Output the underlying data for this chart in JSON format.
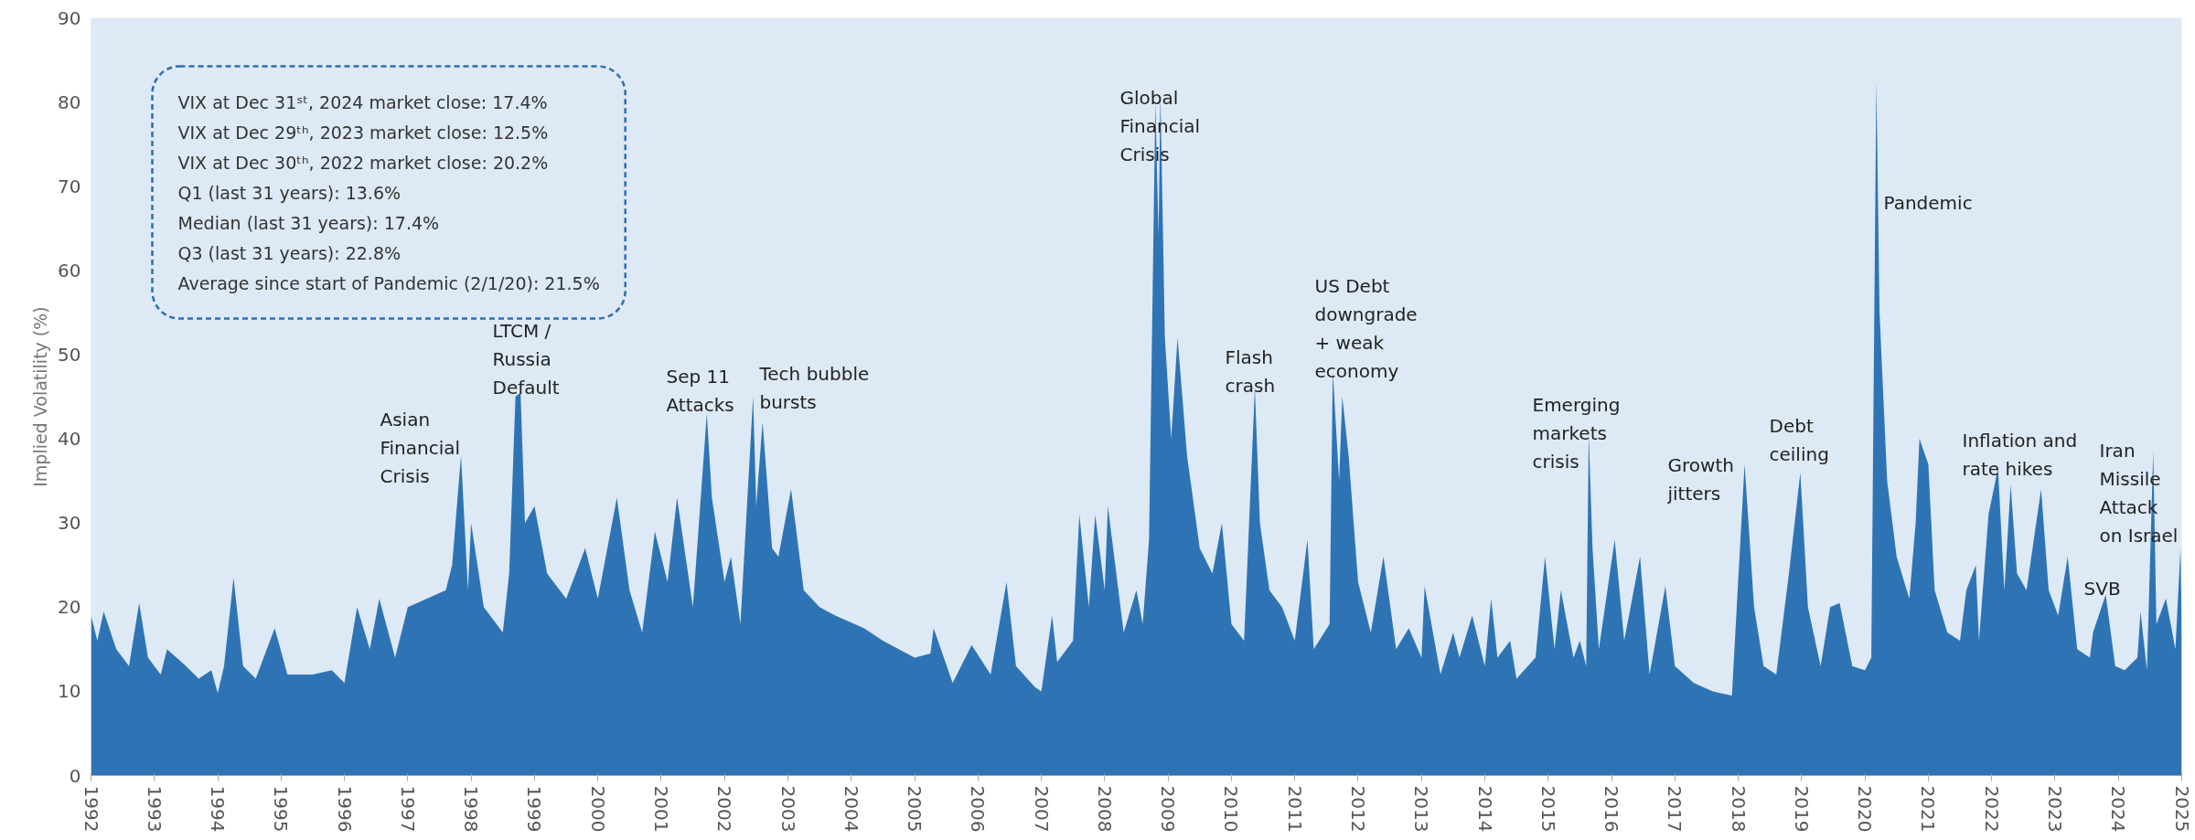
{
  "chart_data": {
    "type": "area",
    "ylabel": "Implied Volatility (%)",
    "xlim": [
      1992,
      2025
    ],
    "xticks": [
      1992,
      1993,
      1994,
      1995,
      1996,
      1997,
      1998,
      1999,
      2000,
      2001,
      2002,
      2003,
      2004,
      2005,
      2006,
      2007,
      2008,
      2009,
      2010,
      2011,
      2012,
      2013,
      2014,
      2015,
      2016,
      2017,
      2018,
      2019,
      2020,
      2021,
      2022,
      2023,
      2024,
      2025
    ],
    "ylim": [
      0,
      90
    ],
    "yticks": [
      0,
      10,
      20,
      30,
      40,
      50,
      60,
      70,
      80,
      90
    ],
    "grid": false,
    "series": [
      {
        "color": "#2e74b5",
        "x": [
          1992.0,
          1992.1,
          1992.2,
          1992.4,
          1992.6,
          1992.76,
          1992.9,
          1993.1,
          1993.2,
          1993.5,
          1993.7,
          1993.9,
          1994.0,
          1994.1,
          1994.25,
          1994.4,
          1994.6,
          1994.9,
          1995.1,
          1995.5,
          1995.8,
          1996.0,
          1996.2,
          1996.4,
          1996.55,
          1996.8,
          1997.0,
          1997.3,
          1997.6,
          1997.7,
          1997.84,
          1997.95,
          1998.0,
          1998.2,
          1998.5,
          1998.6,
          1998.7,
          1998.78,
          1998.85,
          1999.0,
          1999.2,
          1999.5,
          1999.8,
          2000.0,
          2000.3,
          2000.5,
          2000.7,
          2000.9,
          2001.1,
          2001.25,
          2001.5,
          2001.72,
          2001.8,
          2002.0,
          2002.1,
          2002.25,
          2002.45,
          2002.5,
          2002.6,
          2002.75,
          2002.85,
          2003.05,
          2003.25,
          2003.5,
          2003.75,
          2004.2,
          2004.5,
          2005.0,
          2005.25,
          2005.3,
          2005.6,
          2005.9,
          2006.2,
          2006.45,
          2006.6,
          2006.9,
          2007.0,
          2007.17,
          2007.25,
          2007.5,
          2007.6,
          2007.75,
          2007.85,
          2008.0,
          2008.05,
          2008.3,
          2008.5,
          2008.6,
          2008.7,
          2008.8,
          2008.85,
          2008.88,
          2008.95,
          2009.05,
          2009.15,
          2009.3,
          2009.5,
          2009.7,
          2009.85,
          2010.0,
          2010.2,
          2010.37,
          2010.45,
          2010.6,
          2010.8,
          2011.0,
          2011.2,
          2011.3,
          2011.55,
          2011.6,
          2011.7,
          2011.75,
          2011.85,
          2012.0,
          2012.2,
          2012.4,
          2012.6,
          2012.8,
          2013.0,
          2013.05,
          2013.3,
          2013.5,
          2013.6,
          2013.8,
          2014.0,
          2014.1,
          2014.2,
          2014.4,
          2014.5,
          2014.8,
          2014.95,
          2015.1,
          2015.2,
          2015.4,
          2015.5,
          2015.6,
          2015.64,
          2015.7,
          2015.8,
          2016.05,
          2016.2,
          2016.45,
          2016.6,
          2016.85,
          2017.0,
          2017.3,
          2017.6,
          2017.9,
          2018.1,
          2018.25,
          2018.4,
          2018.6,
          2018.8,
          2018.98,
          2019.1,
          2019.3,
          2019.45,
          2019.6,
          2019.8,
          2020.0,
          2020.1,
          2020.18,
          2020.23,
          2020.35,
          2020.5,
          2020.7,
          2020.8,
          2020.86,
          2021.0,
          2021.1,
          2021.3,
          2021.5,
          2021.6,
          2021.75,
          2021.8,
          2021.95,
          2022.1,
          2022.2,
          2022.3,
          2022.4,
          2022.55,
          2022.78,
          2022.9,
          2023.05,
          2023.2,
          2023.35,
          2023.55,
          2023.6,
          2023.8,
          2023.95,
          2024.1,
          2024.3,
          2024.35,
          2024.45,
          2024.55,
          2024.6,
          2024.75,
          2024.9,
          2024.98,
          2025.0
        ],
        "values": [
          19,
          16,
          19.5,
          15,
          13,
          20.5,
          14,
          12,
          15,
          13,
          11.5,
          12.5,
          9.8,
          13,
          23.5,
          13,
          11.5,
          17.5,
          12,
          12,
          12.5,
          11,
          20,
          15,
          21,
          14,
          20,
          21,
          22,
          25,
          38,
          22,
          30,
          20,
          17,
          24,
          45,
          45.5,
          30,
          32,
          24,
          21,
          27,
          21,
          33,
          22,
          17,
          29,
          23,
          33,
          20,
          43,
          33,
          23,
          26,
          18,
          45,
          32,
          42,
          27,
          26,
          34,
          22,
          20,
          19,
          17.5,
          16,
          14,
          14.5,
          17.5,
          11,
          15.5,
          12,
          23,
          13,
          10.5,
          10,
          19,
          13.5,
          16,
          31,
          20,
          31,
          22,
          32,
          17,
          22,
          18,
          28,
          80,
          64,
          81,
          52,
          40,
          52,
          38,
          27,
          24,
          30,
          18,
          16,
          46,
          30,
          22,
          20,
          16,
          28,
          15,
          18,
          48,
          35,
          45,
          38,
          23,
          17,
          26,
          15,
          17.5,
          14,
          22.5,
          12,
          17,
          14,
          19,
          13,
          21,
          14,
          16,
          11.5,
          14,
          26,
          15,
          22,
          14,
          16,
          13,
          40.5,
          27,
          15,
          28,
          16,
          26,
          12,
          22.5,
          13,
          11,
          10,
          9.5,
          37,
          20,
          13,
          12,
          24,
          36,
          20,
          13,
          20,
          20.5,
          13,
          12.5,
          14,
          82.5,
          55,
          35,
          26,
          21,
          30,
          40,
          37,
          22,
          17,
          16,
          22,
          25,
          16,
          31,
          36.5,
          22,
          34.5,
          24,
          22,
          34,
          22,
          19,
          26,
          15,
          14,
          17,
          21.5,
          13,
          12.5,
          14,
          19.5,
          12.5,
          38.5,
          18,
          21,
          15,
          27,
          17.4
        ]
      }
    ],
    "annotations": [
      "VIX at Dec 31ˢᵗ, 2024 market close: 17.4%",
      "VIX at Dec 29ᵗʰ, 2023 market close: 12.5%",
      "VIX at Dec 30ᵗʰ, 2022 market close: 20.2%",
      "Q1 (last 31 years): 13.6%",
      "Median (last 31 years): 17.4%",
      "Q3 (last 31 years): 22.8%",
      "Average since start of Pandemic (2/1/20): 21.5%",
      "Asian\nFinancial\nCrisis",
      "LTCM /\nRussia\nDefault",
      "Sep 11\nAttacks",
      "Tech bubble\nbursts",
      "Global\nFinancial\nCrisis",
      "Flash\ncrash",
      "US Debt\ndowngrade\n+ weak\neconomy",
      "Emerging\nmarkets\ncrisis",
      "Growth\njitters",
      "Debt\nceiling",
      "Pandemic",
      "Inflation and\nrate hikes",
      "SVB",
      "Iran\nMissile\nAttack\non Israel"
    ]
  }
}
